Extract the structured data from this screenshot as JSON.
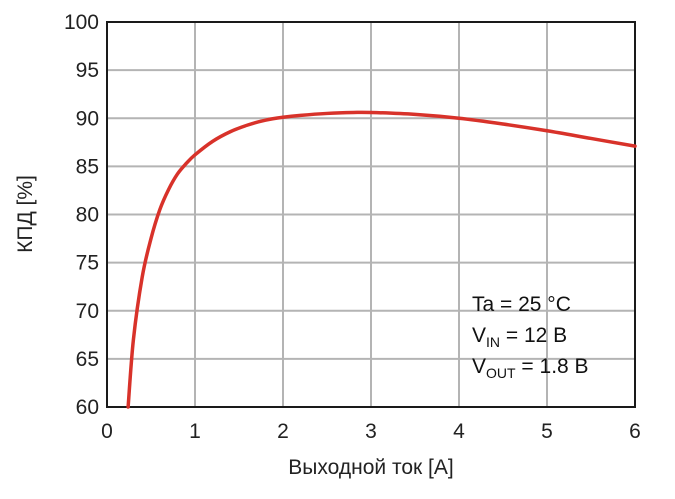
{
  "chart_data": {
    "type": "line",
    "xlabel": "Выходной ток [A]",
    "ylabel": "КПД [%]",
    "xlim": [
      0,
      6
    ],
    "ylim": [
      60,
      100
    ],
    "xticks": [
      0,
      1,
      2,
      3,
      4,
      5,
      6
    ],
    "yticks": [
      60,
      65,
      70,
      75,
      80,
      85,
      90,
      95,
      100
    ],
    "xtick_labels": [
      "0",
      "1",
      "2",
      "3",
      "4",
      "5",
      "6"
    ],
    "ytick_labels": [
      "60",
      "65",
      "70",
      "75",
      "80",
      "85",
      "90",
      "95",
      "100"
    ],
    "grid": true,
    "series": [
      {
        "color": "#d8322a",
        "x": [
          0.24,
          0.3,
          0.4,
          0.5,
          0.6,
          0.7,
          0.8,
          0.9,
          1.0,
          1.2,
          1.4,
          1.6,
          1.8,
          2.0,
          2.2,
          2.5,
          2.8,
          3.0,
          3.5,
          4.0,
          4.5,
          5.0,
          5.5,
          6.0
        ],
        "y": [
          60.0,
          67.0,
          73.5,
          77.5,
          80.5,
          82.6,
          84.2,
          85.3,
          86.2,
          87.6,
          88.6,
          89.3,
          89.8,
          90.1,
          90.3,
          90.5,
          90.6,
          90.6,
          90.4,
          90.0,
          89.4,
          88.7,
          87.9,
          87.1
        ]
      }
    ],
    "annotation": {
      "line1": "Ta = 25 °C",
      "line2_main": "V",
      "line2_sub": "IN",
      "line2_rest": " = 12 В",
      "line3_main": "V",
      "line3_sub": "OUT",
      "line3_rest": " = 1.8 В"
    }
  }
}
